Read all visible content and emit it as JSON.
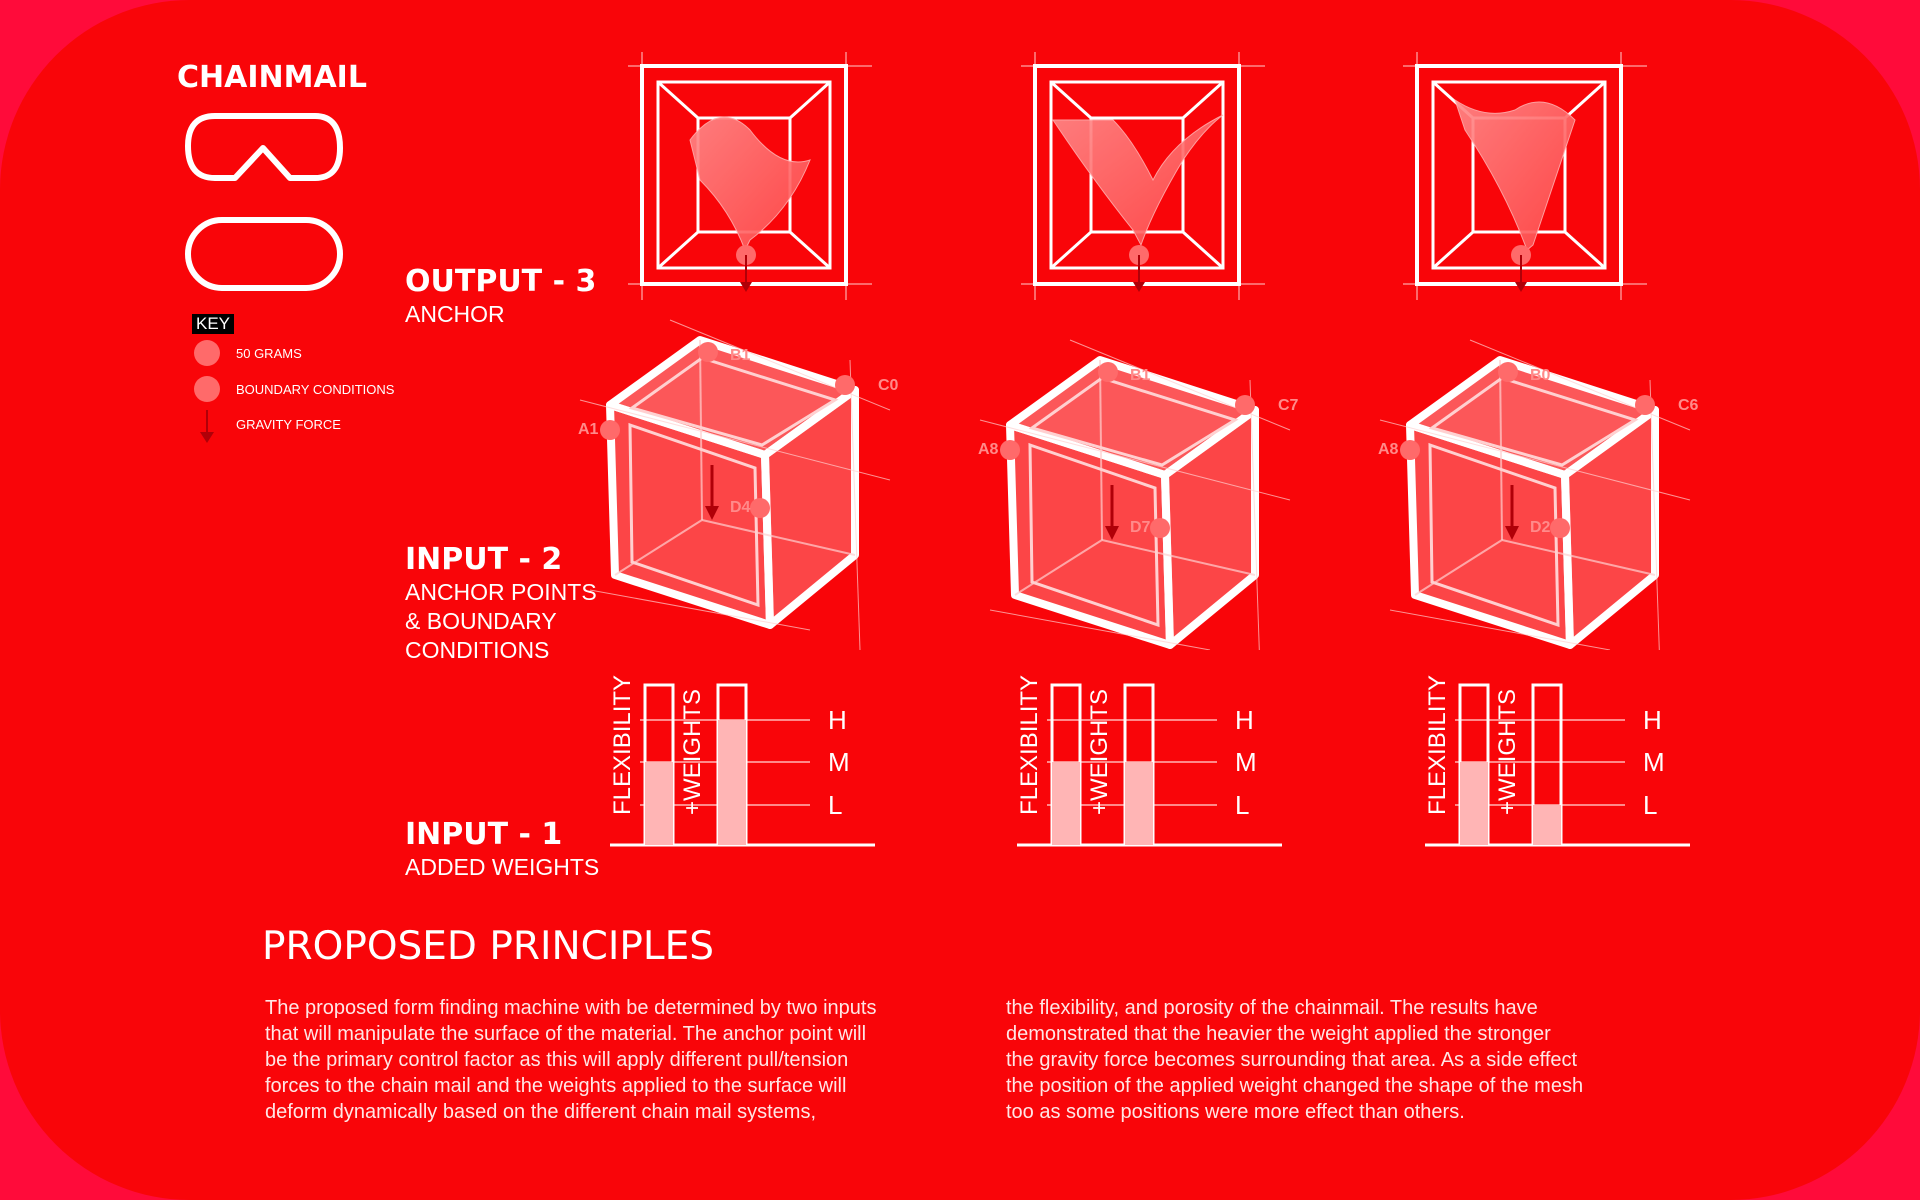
{
  "colors": {
    "background": "#f90509",
    "outer": "#ff0b3a",
    "accent_pink": "#ff6a6a",
    "arrow": "#b00008"
  },
  "header": {
    "title": "CHAINMAIL"
  },
  "icons": [
    "chainmail-link-bent-icon",
    "chainmail-link-oval-icon"
  ],
  "key": {
    "tag": "KEY",
    "items": [
      {
        "label": "50 GRAMS",
        "icon": "weight-dot-icon"
      },
      {
        "label": "BOUNDARY CONDITIONS",
        "icon": "boundary-dot-icon"
      },
      {
        "label": "GRAVITY FORCE",
        "icon": "gravity-arrow-icon"
      }
    ]
  },
  "stages": {
    "output": {
      "title": "OUTPUT - 3",
      "sub": [
        "ANCHOR"
      ]
    },
    "input2": {
      "title": "INPUT - 2",
      "sub": [
        "ANCHOR POINTS",
        "& BOUNDARY",
        "CONDITIONS"
      ]
    },
    "input1": {
      "title": "INPUT - 1",
      "sub": [
        "ADDED WEIGHTS"
      ]
    }
  },
  "cube_labels": [
    [
      "B1",
      "C0",
      "A1",
      "D4"
    ],
    [
      "B1",
      "C7",
      "A8",
      "D7"
    ],
    [
      "B0",
      "C6",
      "A8",
      "D2"
    ]
  ],
  "chart_data": [
    {
      "type": "bar",
      "categories": [
        "FLEXIBILITY",
        "+WEIGHTS"
      ],
      "levels": [
        "H",
        "M",
        "L"
      ],
      "values": [
        "M",
        "H"
      ]
    },
    {
      "type": "bar",
      "categories": [
        "FLEXIBILITY",
        "+WEIGHTS"
      ],
      "levels": [
        "H",
        "M",
        "L"
      ],
      "values": [
        "M",
        "M"
      ]
    },
    {
      "type": "bar",
      "categories": [
        "FLEXIBILITY",
        "+WEIGHTS"
      ],
      "levels": [
        "H",
        "M",
        "L"
      ],
      "values": [
        "M",
        "L"
      ]
    }
  ],
  "principles": {
    "heading": "PROPOSED PRINCIPLES",
    "col1": [
      "The proposed form finding machine with be determined by two inputs",
      "that will manipulate the surface of the material. The anchor point will",
      "be the primary control factor as this will apply different pull/tension",
      "forces to the chain mail and the weights applied to the surface will",
      "deform dynamically based on the different chain mail systems,"
    ],
    "col2": [
      "the flexibility, and porosity of the chainmail. The results have",
      "demonstrated that the heavier the weight applied the stronger",
      "the gravity force becomes surrounding that area. As a side effect",
      "the position of the applied weight changed the shape of the mesh",
      "too as some positions were more effect than others."
    ]
  }
}
